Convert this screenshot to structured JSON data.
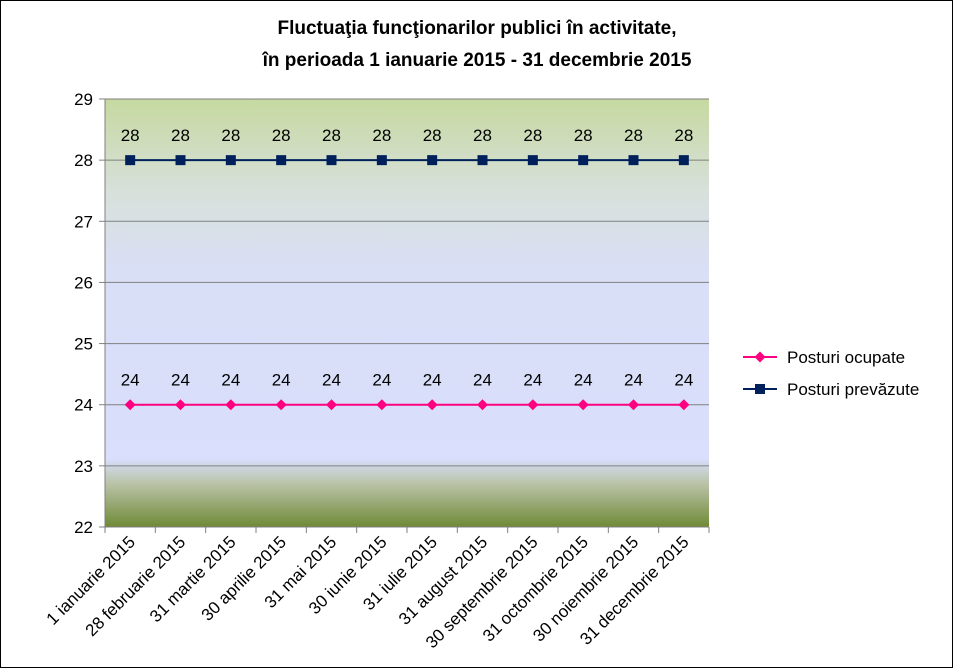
{
  "chart_data": {
    "type": "line",
    "title": "Fluctuaţia funcţionarilor publici în activitate,",
    "subtitle": "în perioada 1 ianuarie 2015 - 31 decembrie 2015",
    "xlabel": "",
    "ylabel": "",
    "ylim": [
      22,
      29
    ],
    "yticks": [
      "22",
      "23",
      "24",
      "25",
      "26",
      "27",
      "28",
      "29"
    ],
    "grid": true,
    "legend_position": "right",
    "categories": [
      "1 ianuarie 2015",
      "28 februarie 2015",
      "31 martie 2015",
      "30 aprilie 2015",
      "31 mai 2015",
      "30 iunie 2015",
      "31 iulie 2015",
      "31 august 2015",
      "30 septembrie 2015",
      "31 octombrie 2015",
      "30 noiembrie 2015",
      "31 decembrie 2015"
    ],
    "series": [
      {
        "name": "Posturi ocupate",
        "color": "#FF0080",
        "marker": "diamond",
        "values": [
          24,
          24,
          24,
          24,
          24,
          24,
          24,
          24,
          24,
          24,
          24,
          24
        ],
        "labels": [
          "24",
          "24",
          "24",
          "24",
          "24",
          "24",
          "24",
          "24",
          "24",
          "24",
          "24",
          "24"
        ]
      },
      {
        "name": "Posturi prevăzute",
        "color": "#00205C",
        "marker": "square",
        "values": [
          28,
          28,
          28,
          28,
          28,
          28,
          28,
          28,
          28,
          28,
          28,
          28
        ],
        "labels": [
          "28",
          "28",
          "28",
          "28",
          "28",
          "28",
          "28",
          "28",
          "28",
          "28",
          "28",
          "28"
        ]
      }
    ]
  }
}
